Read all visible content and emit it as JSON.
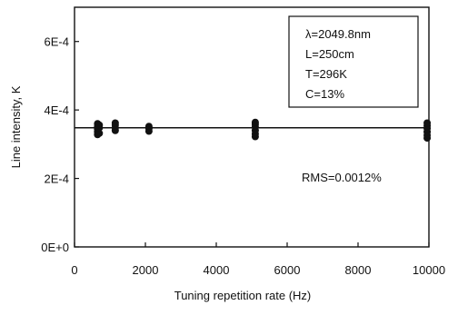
{
  "chart_data": {
    "type": "scatter",
    "title": "",
    "xlabel": "Tuning repetition rate (Hz)",
    "ylabel": "Line intensity, K",
    "xlim": [
      0,
      10000
    ],
    "ylim": [
      0,
      0.0007
    ],
    "x_ticks": [
      0,
      2000,
      4000,
      6000,
      8000,
      10000
    ],
    "x_tick_labels": [
      "0",
      "2000",
      "4000",
      "6000",
      "8000",
      "10000"
    ],
    "y_ticks": [
      0,
      0.0002,
      0.0004,
      0.0006
    ],
    "y_tick_labels": [
      "0E+0",
      "2E-4",
      "4E-4",
      "6E-4"
    ],
    "grid": false,
    "legend": "none",
    "series": [
      {
        "marker_color": "#111111",
        "points": [
          {
            "x": 650,
            "y": 0.000328
          },
          {
            "x": 650,
            "y": 0.000336
          },
          {
            "x": 650,
            "y": 0.000344
          },
          {
            "x": 650,
            "y": 0.000352
          },
          {
            "x": 650,
            "y": 0.00036
          },
          {
            "x": 700,
            "y": 0.000332
          },
          {
            "x": 700,
            "y": 0.000348
          },
          {
            "x": 700,
            "y": 0.000356
          },
          {
            "x": 1150,
            "y": 0.00034
          },
          {
            "x": 1150,
            "y": 0.000348
          },
          {
            "x": 1150,
            "y": 0.000356
          },
          {
            "x": 1150,
            "y": 0.000362
          },
          {
            "x": 2100,
            "y": 0.000338
          },
          {
            "x": 2100,
            "y": 0.000346
          },
          {
            "x": 2100,
            "y": 0.000352
          },
          {
            "x": 5100,
            "y": 0.000322
          },
          {
            "x": 5100,
            "y": 0.00033
          },
          {
            "x": 5100,
            "y": 0.00034
          },
          {
            "x": 5100,
            "y": 0.00035
          },
          {
            "x": 5100,
            "y": 0.000358
          },
          {
            "x": 5100,
            "y": 0.000364
          },
          {
            "x": 9950,
            "y": 0.000318
          },
          {
            "x": 9950,
            "y": 0.000326
          },
          {
            "x": 9950,
            "y": 0.000336
          },
          {
            "x": 9950,
            "y": 0.000346
          },
          {
            "x": 9950,
            "y": 0.000354
          },
          {
            "x": 9950,
            "y": 0.000362
          }
        ]
      }
    ],
    "fit_line": {
      "y": 0.000348,
      "color": "#111111"
    },
    "annotations": {
      "box_lines": [
        "λ=2049.8nm",
        "L=250cm",
        "T=296K",
        "C=13%"
      ],
      "box_position": "top-right",
      "rms": "RMS=0.0012%"
    }
  }
}
